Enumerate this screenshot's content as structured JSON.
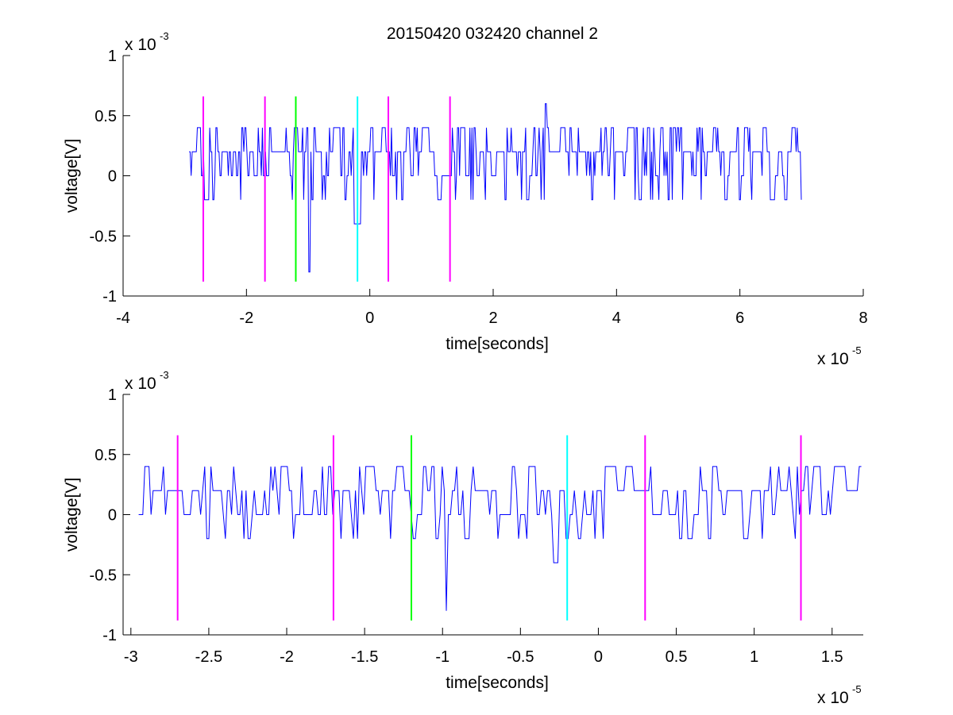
{
  "figure_title": "20150420 032420 channel 2",
  "chart_data": [
    {
      "type": "line",
      "title": "20150420 032420 channel 2",
      "xlabel": "time[seconds]",
      "ylabel": "voltage[V]",
      "x_scale_note": "x 10",
      "x_scale_exp": "-5",
      "y_scale_note": "x 10",
      "y_scale_exp": "-3",
      "xlim": [
        -4,
        8
      ],
      "ylim": [
        -1,
        1
      ],
      "x_ticks": [
        -4,
        -2,
        0,
        2,
        4,
        6,
        8
      ],
      "x_tick_labels": [
        "-4",
        "-2",
        "0",
        "2",
        "4",
        "6",
        "8"
      ],
      "y_ticks": [
        -1,
        -0.5,
        0,
        0.5,
        1
      ],
      "y_tick_labels": [
        "-1",
        "-0.5",
        "0",
        "0.5",
        "1"
      ],
      "grid": false,
      "series": [
        {
          "color": "#0000ff",
          "x_start": -2.93,
          "x_end": 7.0,
          "baseline": 0.2
        }
      ],
      "markers": [
        {
          "x": -2.7,
          "color": "#ff00ff",
          "y_range": [
            -0.88,
            0.66
          ]
        },
        {
          "x": -1.7,
          "color": "#ff00ff",
          "y_range": [
            -0.88,
            0.66
          ]
        },
        {
          "x": -1.2,
          "color": "#00ff00",
          "y_range": [
            -0.88,
            0.66
          ]
        },
        {
          "x": -0.2,
          "color": "#00ffff",
          "y_range": [
            -0.88,
            0.66
          ]
        },
        {
          "x": 0.3,
          "color": "#ff00ff",
          "y_range": [
            -0.88,
            0.66
          ]
        },
        {
          "x": 1.3,
          "color": "#ff00ff",
          "y_range": [
            -0.88,
            0.66
          ]
        }
      ],
      "features": [
        {
          "x": -0.98,
          "y": -0.8
        },
        {
          "x": -0.25,
          "y": -0.4
        },
        {
          "x": 2.85,
          "y": 0.6
        }
      ]
    },
    {
      "type": "line",
      "xlabel": "time[seconds]",
      "ylabel": "voltage[V]",
      "x_scale_note": "x 10",
      "x_scale_exp": "-5",
      "y_scale_note": "x 10",
      "y_scale_exp": "-3",
      "xlim": [
        -3.05,
        1.7
      ],
      "ylim": [
        -1,
        1
      ],
      "x_ticks": [
        -3,
        -2.5,
        -2,
        -1.5,
        -1,
        -0.5,
        0,
        0.5,
        1,
        1.5
      ],
      "x_tick_labels": [
        "-3",
        "-2.5",
        "-2",
        "-1.5",
        "-1",
        "-0.5",
        "0",
        "0.5",
        "1",
        "1.5"
      ],
      "y_ticks": [
        -1,
        -0.5,
        0,
        0.5,
        1
      ],
      "y_tick_labels": [
        "-1",
        "-0.5",
        "0",
        "0.5",
        "1"
      ],
      "grid": false,
      "series": [
        {
          "color": "#0000ff",
          "x_start": -2.95,
          "x_end": 1.7,
          "baseline": 0.2
        }
      ],
      "markers": [
        {
          "x": -2.7,
          "color": "#ff00ff",
          "y_range": [
            -0.88,
            0.66
          ]
        },
        {
          "x": -1.7,
          "color": "#ff00ff",
          "y_range": [
            -0.88,
            0.66
          ]
        },
        {
          "x": -1.2,
          "color": "#00ff00",
          "y_range": [
            -0.88,
            0.66
          ]
        },
        {
          "x": -0.2,
          "color": "#00ffff",
          "y_range": [
            -0.88,
            0.66
          ]
        },
        {
          "x": 0.3,
          "color": "#ff00ff",
          "y_range": [
            -0.88,
            0.66
          ]
        },
        {
          "x": 1.3,
          "color": "#ff00ff",
          "y_range": [
            -0.88,
            0.66
          ]
        }
      ],
      "features": [
        {
          "x": -0.98,
          "y": -0.8
        },
        {
          "x": -0.28,
          "y": -0.4
        },
        {
          "x": -1.18,
          "y": -0.2
        },
        {
          "x": 0.58,
          "y": -0.2
        }
      ]
    }
  ]
}
